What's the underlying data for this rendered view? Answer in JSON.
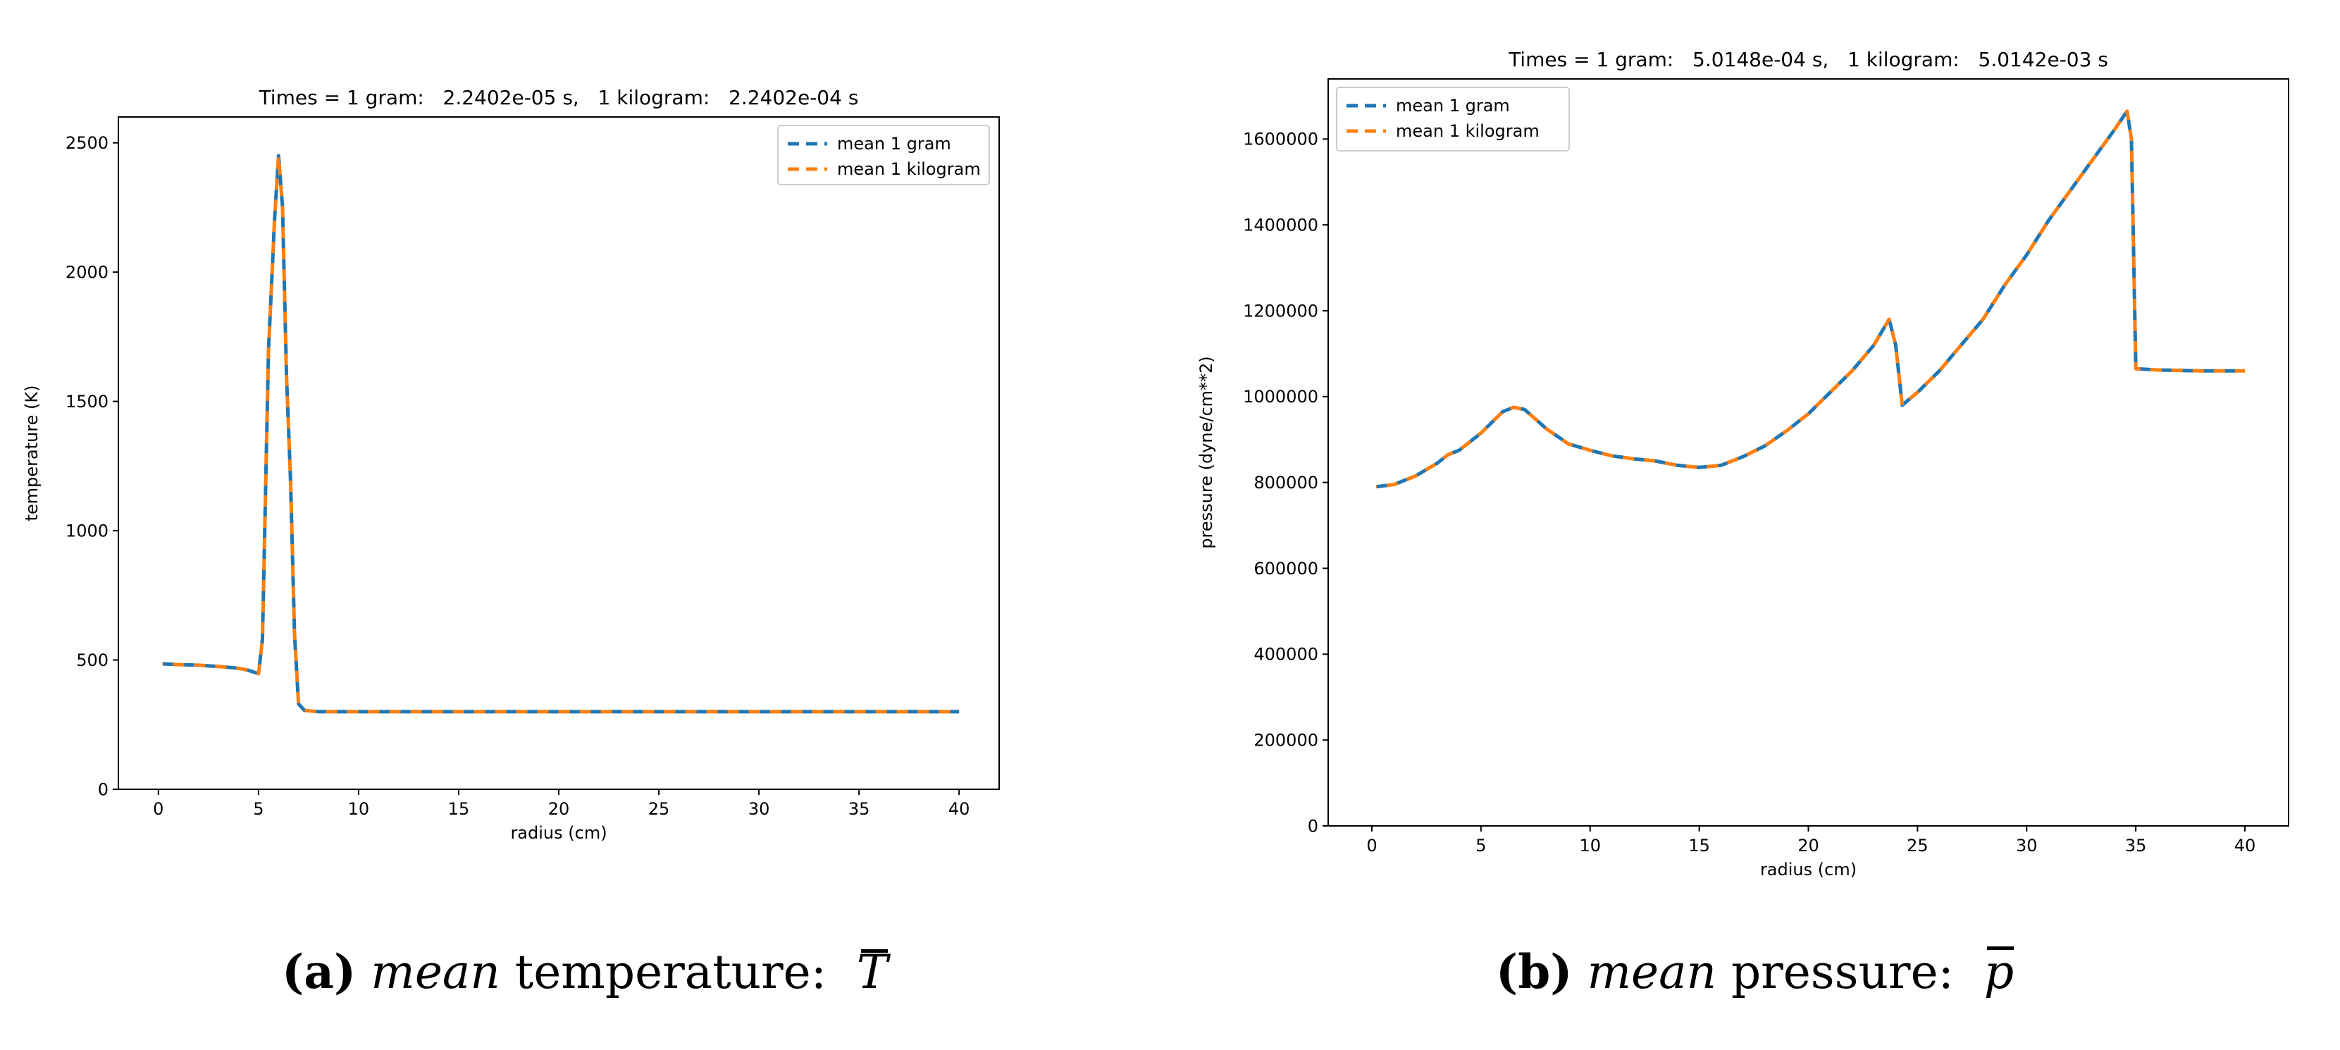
{
  "chart_data": [
    {
      "type": "line",
      "title": "Times = 1 gram:   2.2402e-05 s,   1 kilogram:   2.2402e-04 s",
      "xlabel": "radius (cm)",
      "ylabel": "temperature (K)",
      "xlim": [
        -2,
        42
      ],
      "ylim": [
        0,
        2600
      ],
      "xticks": [
        0,
        5,
        10,
        15,
        20,
        25,
        30,
        35,
        40
      ],
      "yticks": [
        0,
        500,
        1000,
        1500,
        2000,
        2500
      ],
      "legend_position": "upper right",
      "series": [
        {
          "name": "mean 1 gram",
          "color": "#1f77b4",
          "x": [
            0.2,
            1,
            2,
            3,
            4,
            4.5,
            5.0,
            5.2,
            5.5,
            5.8,
            6.0,
            6.2,
            6.4,
            6.6,
            6.8,
            7.0,
            7.3,
            8,
            10,
            15,
            20,
            25,
            30,
            35,
            40
          ],
          "y": [
            485,
            482,
            480,
            475,
            468,
            460,
            447,
            580,
            1700,
            2200,
            2450,
            2250,
            1600,
            1200,
            600,
            330,
            305,
            300,
            300,
            300,
            300,
            300,
            300,
            300,
            300
          ]
        },
        {
          "name": "mean 1 kilogram",
          "color": "#ff7f0e",
          "x": [
            0.2,
            1,
            2,
            3,
            4,
            4.5,
            5.0,
            5.2,
            5.5,
            5.8,
            6.0,
            6.2,
            6.4,
            6.6,
            6.8,
            7.0,
            7.3,
            8,
            10,
            15,
            20,
            25,
            30,
            35,
            40
          ],
          "y": [
            485,
            482,
            480,
            475,
            468,
            460,
            447,
            580,
            1700,
            2200,
            2450,
            2250,
            1600,
            1200,
            600,
            330,
            305,
            300,
            300,
            300,
            300,
            300,
            300,
            300,
            300
          ]
        }
      ]
    },
    {
      "type": "line",
      "title": "Times = 1 gram:   5.0148e-04 s,   1 kilogram:   5.0142e-03 s",
      "xlabel": "radius (cm)",
      "ylabel": "pressure (dyne/cm**2)",
      "xlim": [
        -2,
        42
      ],
      "ylim": [
        0,
        1740000
      ],
      "xticks": [
        0,
        5,
        10,
        15,
        20,
        25,
        30,
        35,
        40
      ],
      "yticks": [
        0,
        200000,
        400000,
        600000,
        800000,
        1000000,
        1200000,
        1400000,
        1600000
      ],
      "legend_position": "upper left",
      "series": [
        {
          "name": "mean 1 gram",
          "color": "#1f77b4",
          "x": [
            0.2,
            1,
            2,
            3,
            3.5,
            4,
            5,
            6,
            6.5,
            7,
            8,
            9,
            10,
            11,
            12,
            13,
            14,
            15,
            16,
            17,
            18,
            19,
            20,
            21,
            22,
            23,
            23.7,
            24,
            24.3,
            25,
            26,
            27,
            28,
            29,
            30,
            31,
            32,
            33,
            34,
            34.6,
            34.8,
            35,
            36,
            38,
            40
          ],
          "y": [
            790000,
            795000,
            815000,
            845000,
            865000,
            875000,
            915000,
            965000,
            975000,
            970000,
            925000,
            890000,
            875000,
            862000,
            855000,
            850000,
            840000,
            835000,
            840000,
            860000,
            885000,
            920000,
            960000,
            1010000,
            1060000,
            1120000,
            1180000,
            1120000,
            980000,
            1010000,
            1060000,
            1120000,
            1180000,
            1260000,
            1330000,
            1410000,
            1480000,
            1550000,
            1620000,
            1665000,
            1600000,
            1065000,
            1062000,
            1060000,
            1060000
          ]
        },
        {
          "name": "mean 1 kilogram",
          "color": "#ff7f0e",
          "x": [
            0.2,
            1,
            2,
            3,
            3.5,
            4,
            5,
            6,
            6.5,
            7,
            8,
            9,
            10,
            11,
            12,
            13,
            14,
            15,
            16,
            17,
            18,
            19,
            20,
            21,
            22,
            23,
            23.7,
            24,
            24.3,
            25,
            26,
            27,
            28,
            29,
            30,
            31,
            32,
            33,
            34,
            34.6,
            34.8,
            35,
            36,
            38,
            40
          ],
          "y": [
            790000,
            795000,
            815000,
            845000,
            865000,
            875000,
            915000,
            965000,
            975000,
            970000,
            925000,
            890000,
            875000,
            862000,
            855000,
            850000,
            840000,
            835000,
            840000,
            860000,
            885000,
            920000,
            960000,
            1010000,
            1060000,
            1120000,
            1180000,
            1120000,
            980000,
            1010000,
            1060000,
            1120000,
            1180000,
            1260000,
            1330000,
            1410000,
            1480000,
            1550000,
            1620000,
            1665000,
            1600000,
            1065000,
            1062000,
            1060000,
            1060000
          ]
        }
      ]
    }
  ],
  "captions": [
    {
      "label": "(a)",
      "italic": "mean",
      "text": "temperature:",
      "symbol": "T"
    },
    {
      "label": "(b)",
      "italic": "mean",
      "text": "pressure:",
      "symbol": "p"
    }
  ]
}
